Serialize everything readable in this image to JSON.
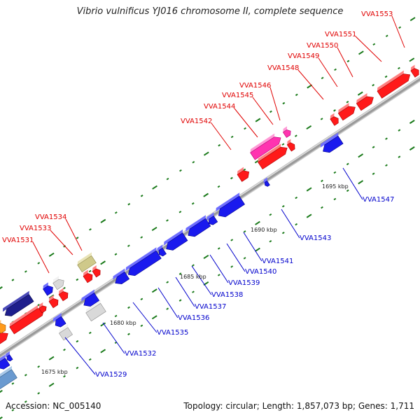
{
  "title": "Vibrio vulnificus YJ016 chromosome II, complete sequence",
  "footer": {
    "accession": "Accession: NC_005140",
    "stats": "Topology: circular; Length: 1,857,073 bp; Genes: 1,711"
  },
  "colors": {
    "forward_label": "#e00000",
    "reverse_label": "#0000cc",
    "backbone": "#9a9a9a",
    "tick": "#1a7a1a"
  },
  "scale_labels": [
    "1675 kbp",
    "1680 kbp",
    "1685 kbp",
    "1690 kbp",
    "1695 kbp"
  ],
  "forward_labels": [
    "VVA1531",
    "VVA1533",
    "VVA1534",
    "VVA1542",
    "VVA1544",
    "VVA1545",
    "VVA1546",
    "VVA1548",
    "VVA1549",
    "VVA1550",
    "VVA1551",
    "VVA1553"
  ],
  "reverse_labels": [
    "VVA1529",
    "VVA1532",
    "VVA1535",
    "VVA1536",
    "VVA1537",
    "VVA1538",
    "VVA1539",
    "VVA1540",
    "VVA1541",
    "VVA1543",
    "VVA1547"
  ]
}
